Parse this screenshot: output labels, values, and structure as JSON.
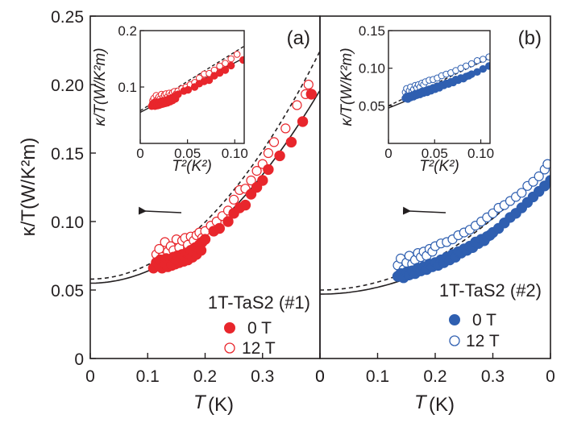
{
  "chart_data": [
    {
      "panel_label": "(a)",
      "type": "scatter",
      "sample": "1T-TaS2 (#1)",
      "xlabel_sym": "T",
      "xlabel_unit": "(K)",
      "ylabel": "κ/T(W/K²m)",
      "xlim": [
        0,
        0.4
      ],
      "ylim": [
        0,
        0.25
      ],
      "x_ticks": [
        "0",
        "0.1",
        "0.2",
        "0.3",
        "0"
      ],
      "y_ticks": [
        "0",
        "0.05",
        "0.10",
        "0.15",
        "0.20",
        "0.25"
      ],
      "arrow": "points left (main axes)",
      "series": [
        {
          "name": "0 T",
          "marker": "filled-circle",
          "color": "#e8262c",
          "fit_curve": "solid",
          "fit": {
            "a": 0.055,
            "b": 0.88
          },
          "x": [
            0.11,
            0.115,
            0.12,
            0.122,
            0.125,
            0.128,
            0.13,
            0.132,
            0.135,
            0.138,
            0.14,
            0.142,
            0.145,
            0.148,
            0.15,
            0.152,
            0.155,
            0.158,
            0.16,
            0.163,
            0.165,
            0.168,
            0.17,
            0.173,
            0.175,
            0.178,
            0.18,
            0.183,
            0.185,
            0.188,
            0.19,
            0.193,
            0.195,
            0.2,
            0.215,
            0.225,
            0.24,
            0.25,
            0.26,
            0.27,
            0.28,
            0.29,
            0.3,
            0.31,
            0.33,
            0.35,
            0.37,
            0.385
          ],
          "y": [
            0.066,
            0.07,
            0.068,
            0.072,
            0.066,
            0.071,
            0.069,
            0.073,
            0.067,
            0.072,
            0.07,
            0.068,
            0.074,
            0.069,
            0.072,
            0.075,
            0.07,
            0.073,
            0.076,
            0.071,
            0.074,
            0.077,
            0.072,
            0.076,
            0.079,
            0.074,
            0.078,
            0.081,
            0.076,
            0.08,
            0.083,
            0.079,
            0.085,
            0.087,
            0.093,
            0.095,
            0.1,
            0.106,
            0.11,
            0.112,
            0.12,
            0.125,
            0.13,
            0.138,
            0.148,
            0.158,
            0.173,
            0.193
          ]
        },
        {
          "name": "12 T",
          "marker": "open-circle",
          "color": "#e8262c",
          "fit_curve": "dashed",
          "fit": {
            "a": 0.058,
            "b": 1.04
          },
          "x": [
            0.115,
            0.12,
            0.125,
            0.13,
            0.135,
            0.14,
            0.145,
            0.15,
            0.155,
            0.16,
            0.165,
            0.17,
            0.175,
            0.18,
            0.185,
            0.19,
            0.195,
            0.2,
            0.21,
            0.22,
            0.23,
            0.24,
            0.25,
            0.26,
            0.27,
            0.28,
            0.29,
            0.3,
            0.31,
            0.32,
            0.34,
            0.36,
            0.375,
            0.38
          ],
          "y": [
            0.076,
            0.08,
            0.074,
            0.085,
            0.078,
            0.082,
            0.079,
            0.087,
            0.081,
            0.086,
            0.088,
            0.083,
            0.089,
            0.086,
            0.09,
            0.092,
            0.088,
            0.093,
            0.097,
            0.1,
            0.104,
            0.108,
            0.116,
            0.123,
            0.124,
            0.13,
            0.137,
            0.142,
            0.15,
            0.158,
            0.168,
            0.185,
            0.193,
            0.2
          ]
        }
      ],
      "inset": {
        "xlabel": "T²(K²)",
        "ylabel": "κ/T(W/K²m)",
        "xlim": [
          0,
          0.11
        ],
        "ylim": [
          0,
          0.2
        ],
        "x_ticks": [
          "0",
          "0.05",
          "0.10"
        ],
        "y_ticks": [
          "0.1",
          "0.2"
        ]
      }
    },
    {
      "panel_label": "(b)",
      "type": "scatter",
      "sample": "1T-TaS2 (#2)",
      "xlabel_sym": "T",
      "xlabel_unit": "(K)",
      "ylabel": "κ/T(W/K²m)",
      "xlim": [
        0,
        0.4
      ],
      "ylim": [
        0,
        0.25
      ],
      "x_ticks": [
        "0",
        "0.1",
        "0.2",
        "0.3",
        "0"
      ],
      "y_ticks": [
        "0",
        "0.05",
        "0.10",
        "0.15",
        "0.20",
        "0.25"
      ],
      "arrow": "points left (main axes)",
      "series": [
        {
          "name": "0 T",
          "marker": "filled-circle",
          "color": "#2f5fb0",
          "fit_curve": "solid",
          "fit": {
            "a": 0.047,
            "b": 0.5
          },
          "x": [
            0.135,
            0.14,
            0.145,
            0.15,
            0.155,
            0.16,
            0.165,
            0.17,
            0.175,
            0.18,
            0.185,
            0.19,
            0.195,
            0.2,
            0.205,
            0.21,
            0.215,
            0.22,
            0.225,
            0.23,
            0.235,
            0.24,
            0.245,
            0.25,
            0.255,
            0.26,
            0.265,
            0.27,
            0.275,
            0.28,
            0.285,
            0.29,
            0.295,
            0.3,
            0.31,
            0.32,
            0.33,
            0.34,
            0.35,
            0.36,
            0.37,
            0.38,
            0.39,
            0.4
          ],
          "y": [
            0.06,
            0.062,
            0.059,
            0.063,
            0.061,
            0.064,
            0.062,
            0.066,
            0.064,
            0.067,
            0.065,
            0.069,
            0.067,
            0.07,
            0.068,
            0.072,
            0.07,
            0.074,
            0.072,
            0.076,
            0.074,
            0.078,
            0.077,
            0.08,
            0.079,
            0.082,
            0.081,
            0.085,
            0.084,
            0.087,
            0.086,
            0.089,
            0.09,
            0.092,
            0.095,
            0.099,
            0.103,
            0.106,
            0.11,
            0.114,
            0.118,
            0.122,
            0.126,
            0.13
          ]
        },
        {
          "name": "12 T",
          "marker": "open-circle",
          "color": "#2f5fb0",
          "fit_curve": "dashed",
          "fit": {
            "a": 0.05,
            "b": 0.58
          },
          "x": [
            0.135,
            0.14,
            0.145,
            0.15,
            0.155,
            0.16,
            0.165,
            0.17,
            0.175,
            0.18,
            0.185,
            0.19,
            0.195,
            0.2,
            0.21,
            0.22,
            0.23,
            0.24,
            0.25,
            0.26,
            0.27,
            0.28,
            0.29,
            0.3,
            0.31,
            0.32,
            0.33,
            0.34,
            0.35,
            0.36,
            0.37,
            0.38,
            0.39,
            0.395
          ],
          "y": [
            0.068,
            0.073,
            0.065,
            0.07,
            0.075,
            0.069,
            0.072,
            0.077,
            0.074,
            0.078,
            0.075,
            0.08,
            0.078,
            0.082,
            0.084,
            0.085,
            0.087,
            0.09,
            0.092,
            0.094,
            0.097,
            0.1,
            0.103,
            0.106,
            0.11,
            0.112,
            0.115,
            0.118,
            0.121,
            0.126,
            0.129,
            0.133,
            0.138,
            0.142
          ]
        }
      ],
      "inset": {
        "xlabel": "T²(K²)",
        "ylabel": "κ/T(W/K²m)",
        "xlim": [
          0,
          0.11
        ],
        "ylim": [
          0,
          0.15
        ],
        "x_ticks": [
          "0",
          "0.05",
          "0.10"
        ],
        "y_ticks": [
          "0.05",
          "0.10",
          "0.15"
        ]
      }
    }
  ]
}
